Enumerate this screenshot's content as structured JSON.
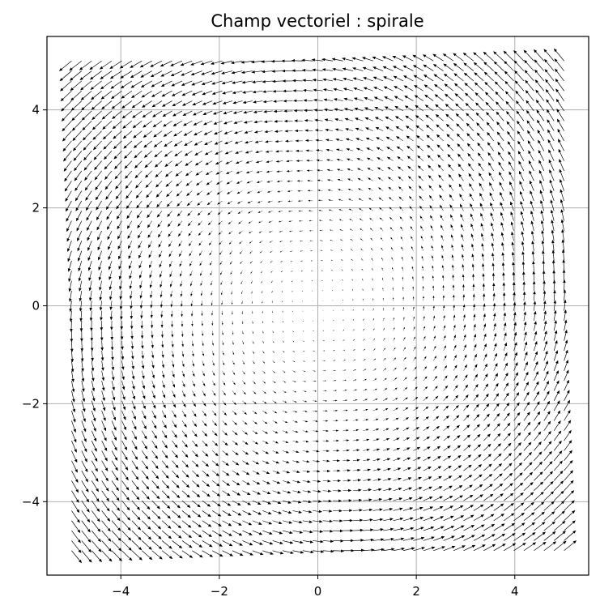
{
  "chart_data": {
    "type": "quiver",
    "title": "Champ vectoriel : spirale",
    "xlabel": "",
    "ylabel": "",
    "xlim": [
      -5.5,
      5.5
    ],
    "ylim": [
      -5.5,
      5.5
    ],
    "x_ticks": [
      -4,
      -2,
      0,
      2,
      4
    ],
    "y_ticks": [
      -4,
      -2,
      0,
      2,
      4
    ],
    "x_tick_labels": [
      "−4",
      "−2",
      "0",
      "2",
      "4"
    ],
    "y_tick_labels": [
      "−4",
      "−2",
      "0",
      "2",
      "4"
    ],
    "grid": true,
    "field": {
      "x_range": [
        -5,
        5
      ],
      "y_range": [
        -5,
        5
      ],
      "points_per_axis": 50,
      "u": "-y + 0.1*x",
      "v": "x + 0.1*y"
    },
    "colors": {
      "arrows": "#000000",
      "grid": "#b0b0b0"
    }
  }
}
